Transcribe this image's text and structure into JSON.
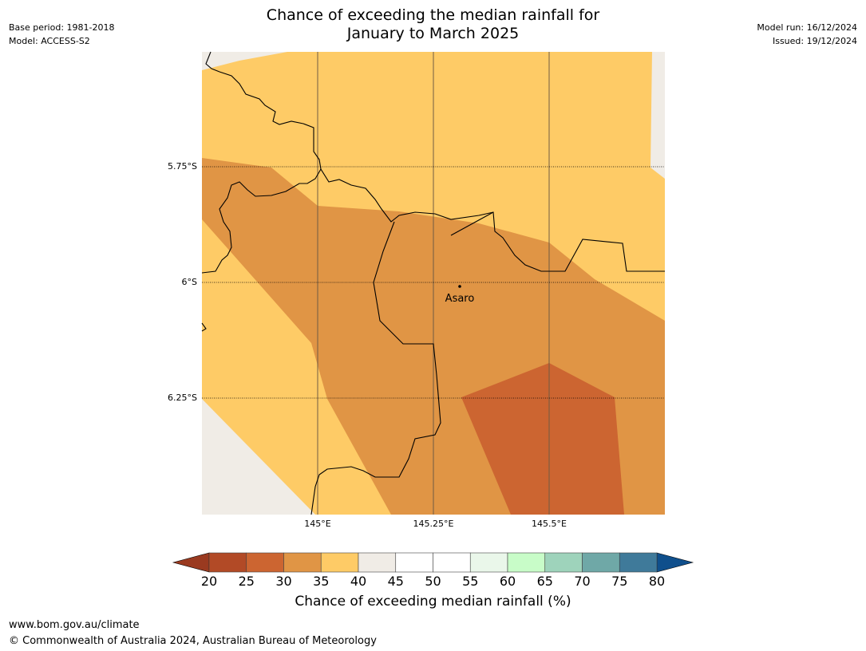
{
  "header": {
    "title_line1": "Chance of exceeding the median rainfall for",
    "title_line2": "January to March 2025",
    "base_period": "Base period: 1981-2018",
    "model": "Model: ACCESS-S2",
    "model_run": "Model run: 16/12/2024",
    "issued": "Issued: 19/12/2024"
  },
  "map": {
    "lat_labels": [
      "5.75°S",
      "6°S",
      "6.25°S"
    ],
    "lon_labels": [
      "145°E",
      "145.25°E",
      "145.5°E"
    ],
    "place_label": "Asaro",
    "colors": {
      "land_grey": "#f0ece6",
      "band_35_40": "#fecb66",
      "band_30_35": "#e09545",
      "band_25_30": "#cc6531"
    }
  },
  "colorbar": {
    "ticks": [
      "20",
      "25",
      "30",
      "35",
      "40",
      "45",
      "50",
      "55",
      "60",
      "65",
      "70",
      "75",
      "80"
    ],
    "colors": [
      "#b24a26",
      "#cc6531",
      "#e09545",
      "#fecb66",
      "#f0ece6",
      "#ffffff",
      "#ffffff",
      "#eaf7ea",
      "#c8fcc8",
      "#9ed3bb",
      "#6fa8a7",
      "#3f7a9a"
    ],
    "low_color": "#9a3a20",
    "high_color": "#0f4f8c",
    "label": "Chance of exceeding median rainfall (%)"
  },
  "footer": {
    "url": "www.bom.gov.au/climate",
    "copyright": "© Commonwealth of Australia 2024, Australian Bureau of Meteorology"
  }
}
